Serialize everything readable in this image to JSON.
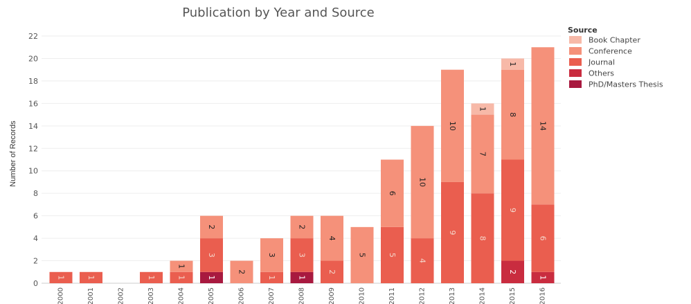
{
  "chart_data": {
    "type": "bar",
    "stacked": true,
    "title": "Publication by Year and Source",
    "ylabel": "Number of Records",
    "xlabel": "",
    "ylim": [
      0,
      22
    ],
    "yticks": [
      0,
      2,
      4,
      6,
      8,
      10,
      12,
      14,
      16,
      18,
      20,
      22
    ],
    "grid": true,
    "legend_title": "Source",
    "legend_position": "top-right",
    "categories": [
      "2000",
      "2001",
      "2002",
      "2003",
      "2004",
      "2005",
      "2006",
      "2007",
      "2008",
      "2009",
      "2010",
      "2011",
      "2012",
      "2013",
      "2014",
      "2015",
      "2016"
    ],
    "series": [
      {
        "name": "PhD/Masters Thesis",
        "color": "#a8193f",
        "label_color": "#ffffff",
        "values": [
          0,
          0,
          0,
          0,
          0,
          1,
          0,
          0,
          1,
          0,
          0,
          0,
          0,
          0,
          0,
          0,
          0
        ]
      },
      {
        "name": "Others",
        "color": "#c92c3f",
        "label_color": "#ffffff",
        "values": [
          0,
          0,
          0,
          0,
          0,
          0,
          0,
          0,
          0,
          0,
          0,
          0,
          0,
          0,
          0,
          2,
          1
        ]
      },
      {
        "name": "Journal",
        "color": "#ea5e4f",
        "label_color": "#f4d8cc",
        "values": [
          1,
          1,
          0,
          1,
          1,
          3,
          0,
          1,
          3,
          2,
          0,
          5,
          4,
          9,
          8,
          9,
          6
        ]
      },
      {
        "name": "Conference",
        "color": "#f5917a",
        "label_color": "#222222",
        "values": [
          0,
          0,
          0,
          0,
          1,
          2,
          2,
          3,
          2,
          4,
          5,
          6,
          10,
          10,
          7,
          8,
          14
        ]
      },
      {
        "name": "Book Chapter",
        "color": "#f7b9a8",
        "label_color": "#222222",
        "values": [
          0,
          0,
          0,
          0,
          0,
          0,
          0,
          0,
          0,
          0,
          0,
          0,
          0,
          0,
          1,
          1,
          0
        ]
      }
    ],
    "legend_order": [
      "Book Chapter",
      "Conference",
      "Journal",
      "Others",
      "PhD/Masters Thesis"
    ]
  }
}
